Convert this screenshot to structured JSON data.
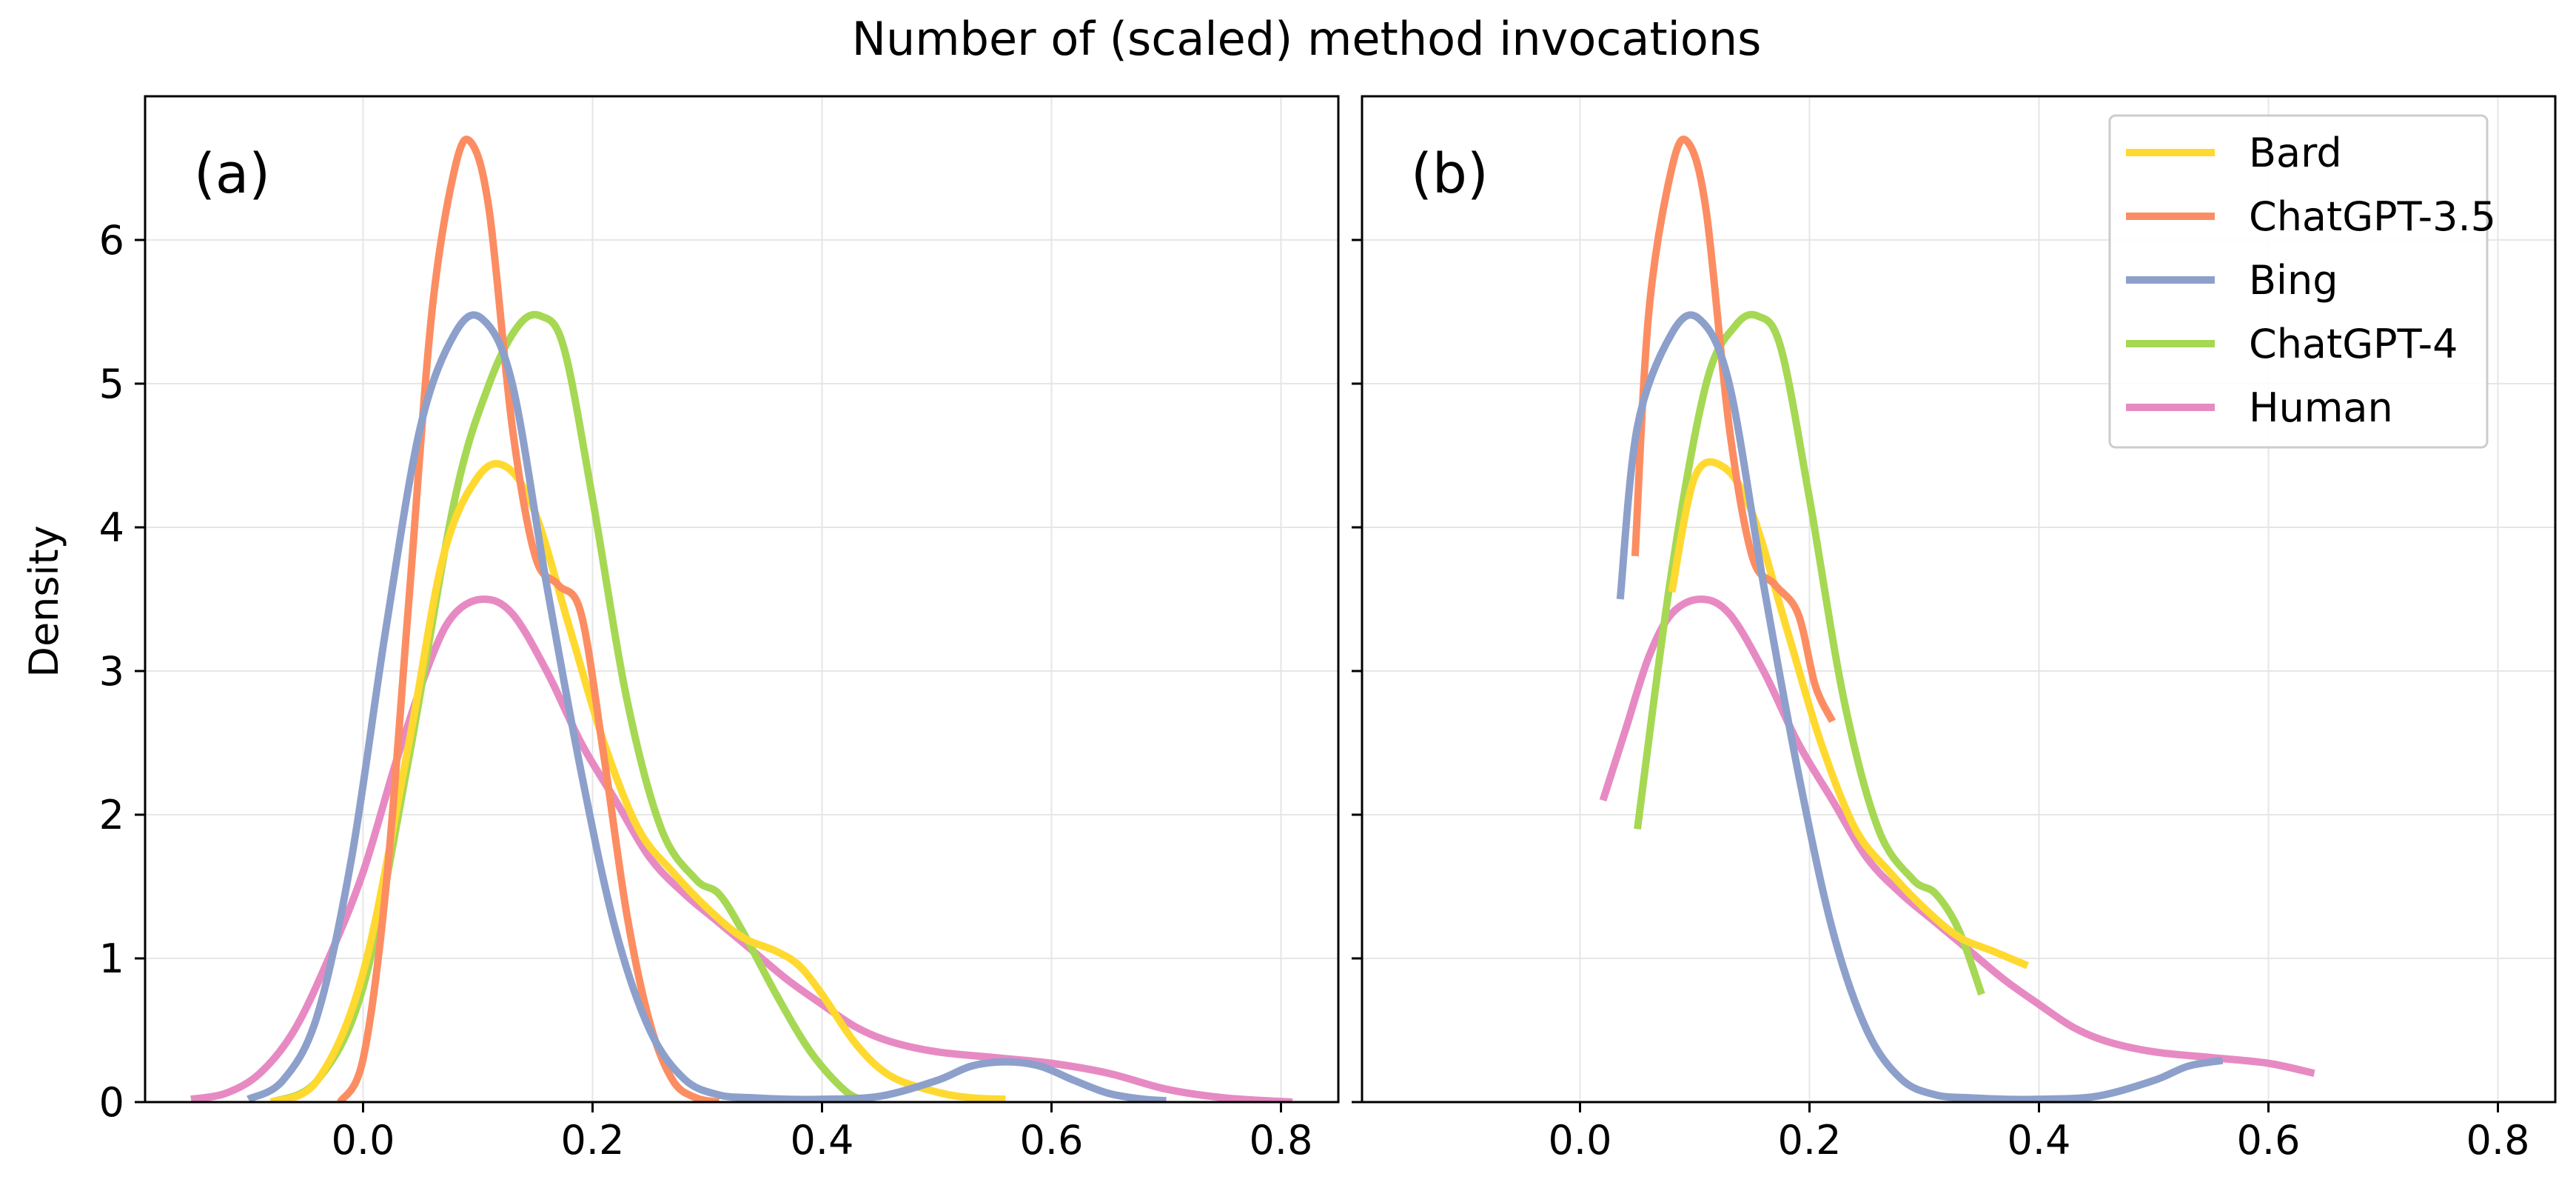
{
  "chart_data": {
    "type": "line",
    "title": "Number of (scaled) method invocations",
    "ylabel": "Density",
    "xlim": [
      -0.19,
      0.85
    ],
    "ylim": [
      0,
      7.0
    ],
    "xticks": [
      0.0,
      0.2,
      0.4,
      0.6,
      0.8
    ],
    "xtick_labels": [
      "0.0",
      "0.2",
      "0.4",
      "0.6",
      "0.8"
    ],
    "yticks": [
      0,
      1,
      2,
      3,
      4,
      5,
      6
    ],
    "ytick_labels": [
      "0",
      "1",
      "2",
      "3",
      "4",
      "5",
      "6"
    ],
    "grid": true,
    "legend_position": "top-right (panel b)",
    "panels": [
      {
        "label": "(a)",
        "series": [
          {
            "name": "Human",
            "color": "#e78ac3",
            "x": [
              -0.15,
              -0.12,
              -0.09,
              -0.06,
              -0.03,
              0.0,
              0.03,
              0.06,
              0.08,
              0.105,
              0.13,
              0.16,
              0.19,
              0.22,
              0.25,
              0.28,
              0.31,
              0.34,
              0.37,
              0.4,
              0.43,
              0.46,
              0.5,
              0.55,
              0.6,
              0.65,
              0.7,
              0.75,
              0.81
            ],
            "y": [
              0.02,
              0.06,
              0.2,
              0.5,
              1.0,
              1.6,
              2.4,
              3.1,
              3.4,
              3.5,
              3.4,
              3.0,
              2.5,
              2.1,
              1.7,
              1.45,
              1.25,
              1.05,
              0.85,
              0.68,
              0.52,
              0.42,
              0.35,
              0.31,
              0.27,
              0.2,
              0.09,
              0.03,
              0.0
            ]
          },
          {
            "name": "ChatGPT-4",
            "color": "#a6d854",
            "x": [
              -0.08,
              -0.04,
              0.0,
              0.04,
              0.08,
              0.11,
              0.135,
              0.155,
              0.175,
              0.2,
              0.23,
              0.26,
              0.29,
              0.31,
              0.33,
              0.36,
              0.39,
              0.42,
              0.44
            ],
            "y": [
              0.0,
              0.15,
              0.8,
              2.4,
              4.2,
              5.0,
              5.4,
              5.47,
              5.25,
              4.2,
              2.8,
              1.9,
              1.55,
              1.45,
              1.2,
              0.75,
              0.35,
              0.08,
              0.0
            ]
          },
          {
            "name": "Bard",
            "color": "#ffd92f",
            "x": [
              -0.08,
              -0.04,
              0.0,
              0.04,
              0.07,
              0.1,
              0.125,
              0.15,
              0.18,
              0.21,
              0.24,
              0.27,
              0.3,
              0.33,
              0.36,
              0.38,
              0.4,
              0.43,
              0.46,
              0.5,
              0.53,
              0.56
            ],
            "y": [
              0.0,
              0.15,
              0.9,
              2.5,
              3.8,
              4.35,
              4.42,
              4.1,
              3.3,
              2.5,
              1.9,
              1.6,
              1.35,
              1.15,
              1.05,
              0.95,
              0.75,
              0.4,
              0.18,
              0.07,
              0.03,
              0.02
            ]
          },
          {
            "name": "ChatGPT-3.5",
            "color": "#fc8d62",
            "x": [
              -0.02,
              0.0,
              0.02,
              0.04,
              0.06,
              0.08,
              0.094,
              0.11,
              0.13,
              0.15,
              0.17,
              0.19,
              0.21,
              0.23,
              0.25,
              0.27,
              0.29,
              0.31
            ],
            "y": [
              0.0,
              0.3,
              1.5,
              3.5,
              5.5,
              6.5,
              6.68,
              6.2,
              4.7,
              3.8,
              3.6,
              3.4,
              2.4,
              1.3,
              0.55,
              0.15,
              0.03,
              0.0
            ]
          },
          {
            "name": "Bing",
            "color": "#8da0cb",
            "x": [
              -0.1,
              -0.07,
              -0.04,
              -0.01,
              0.02,
              0.05,
              0.08,
              0.104,
              0.13,
              0.16,
              0.19,
              0.22,
              0.25,
              0.28,
              0.31,
              0.34,
              0.37,
              0.4,
              0.45,
              0.5,
              0.53,
              0.56,
              0.59,
              0.62,
              0.65,
              0.68,
              0.7
            ],
            "y": [
              0.02,
              0.15,
              0.6,
              1.7,
              3.3,
              4.7,
              5.35,
              5.45,
              5.0,
              3.6,
              2.3,
              1.2,
              0.5,
              0.16,
              0.05,
              0.03,
              0.02,
              0.02,
              0.04,
              0.15,
              0.25,
              0.28,
              0.25,
              0.15,
              0.06,
              0.02,
              0.01
            ]
          }
        ]
      },
      {
        "label": "(b)",
        "series": [
          {
            "name": "Human",
            "color": "#e78ac3",
            "x": [
              0.02,
              0.04,
              0.06,
              0.08,
              0.105,
              0.13,
              0.16,
              0.19,
              0.22,
              0.25,
              0.28,
              0.31,
              0.34,
              0.37,
              0.4,
              0.43,
              0.46,
              0.5,
              0.55,
              0.6,
              0.64
            ],
            "y": [
              2.1,
              2.6,
              3.1,
              3.4,
              3.5,
              3.4,
              3.0,
              2.5,
              2.1,
              1.7,
              1.45,
              1.25,
              1.05,
              0.85,
              0.68,
              0.52,
              0.42,
              0.35,
              0.31,
              0.27,
              0.2
            ]
          },
          {
            "name": "ChatGPT-4",
            "color": "#a6d854",
            "x": [
              0.05,
              0.08,
              0.11,
              0.135,
              0.155,
              0.175,
              0.2,
              0.23,
              0.26,
              0.29,
              0.31,
              0.33,
              0.35
            ],
            "y": [
              1.9,
              3.7,
              5.0,
              5.4,
              5.47,
              5.25,
              4.2,
              2.8,
              1.9,
              1.55,
              1.45,
              1.2,
              0.75
            ]
          },
          {
            "name": "Bard",
            "color": "#ffd92f",
            "x": [
              0.08,
              0.1,
              0.125,
              0.15,
              0.18,
              0.21,
              0.24,
              0.27,
              0.3,
              0.33,
              0.36,
              0.39
            ],
            "y": [
              3.55,
              4.35,
              4.42,
              4.1,
              3.3,
              2.5,
              1.9,
              1.6,
              1.35,
              1.15,
              1.05,
              0.95
            ]
          },
          {
            "name": "ChatGPT-3.5",
            "color": "#fc8d62",
            "x": [
              0.048,
              0.06,
              0.08,
              0.094,
              0.11,
              0.13,
              0.15,
              0.17,
              0.19,
              0.205,
              0.22
            ],
            "y": [
              3.8,
              5.5,
              6.5,
              6.68,
              6.2,
              4.7,
              3.8,
              3.6,
              3.4,
              2.9,
              2.65
            ]
          },
          {
            "name": "Bing",
            "color": "#8da0cb",
            "x": [
              0.035,
              0.05,
              0.08,
              0.104,
              0.13,
              0.16,
              0.19,
              0.22,
              0.25,
              0.28,
              0.31,
              0.34,
              0.37,
              0.4,
              0.45,
              0.5,
              0.53,
              0.56
            ],
            "y": [
              3.5,
              4.7,
              5.35,
              5.45,
              5.0,
              3.6,
              2.3,
              1.2,
              0.5,
              0.16,
              0.05,
              0.03,
              0.02,
              0.02,
              0.04,
              0.15,
              0.25,
              0.29
            ]
          }
        ]
      }
    ],
    "legend": [
      "Bard",
      "ChatGPT-3.5",
      "Bing",
      "ChatGPT-4",
      "Human"
    ],
    "legend_colors": [
      "#ffd92f",
      "#fc8d62",
      "#8da0cb",
      "#a6d854",
      "#e78ac3"
    ]
  }
}
